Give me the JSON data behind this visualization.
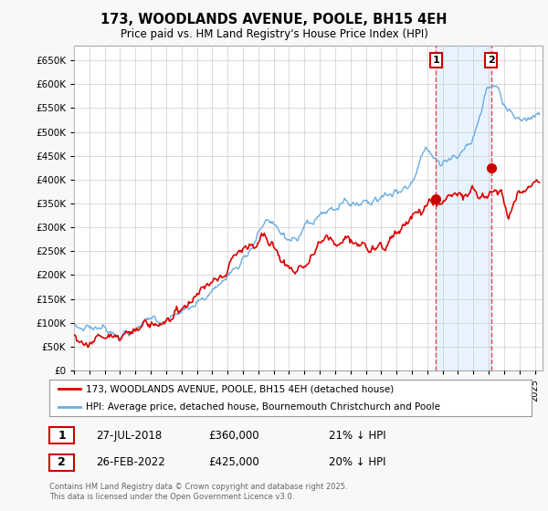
{
  "title": "173, WOODLANDS AVENUE, POOLE, BH15 4EH",
  "subtitle": "Price paid vs. HM Land Registry's House Price Index (HPI)",
  "sale1_date_num": 2018.57,
  "sale1_price": 360000,
  "sale1_label": "27-JUL-2018",
  "sale1_pct": "21% ↓ HPI",
  "sale2_date_num": 2022.15,
  "sale2_price": 425000,
  "sale2_label": "26-FEB-2022",
  "sale2_pct": "20% ↓ HPI",
  "legend_line1": "173, WOODLANDS AVENUE, POOLE, BH15 4EH (detached house)",
  "legend_line2": "HPI: Average price, detached house, Bournemouth Christchurch and Poole",
  "footer": "Contains HM Land Registry data © Crown copyright and database right 2025.\nThis data is licensed under the Open Government Licence v3.0.",
  "hpi_color": "#6aace0",
  "sale_color": "#dd0000",
  "marker_color": "#cc0000",
  "background_color": "#f8f8f8",
  "plot_bg_color": "#ffffff",
  "grid_color": "#cccccc",
  "annotation_box_color": "#cc0000",
  "vline_color": "#dd4444",
  "shade_color": "#ddeeff",
  "ylim_max": 680000,
  "xlim_min": 1995,
  "xlim_max": 2025.5
}
